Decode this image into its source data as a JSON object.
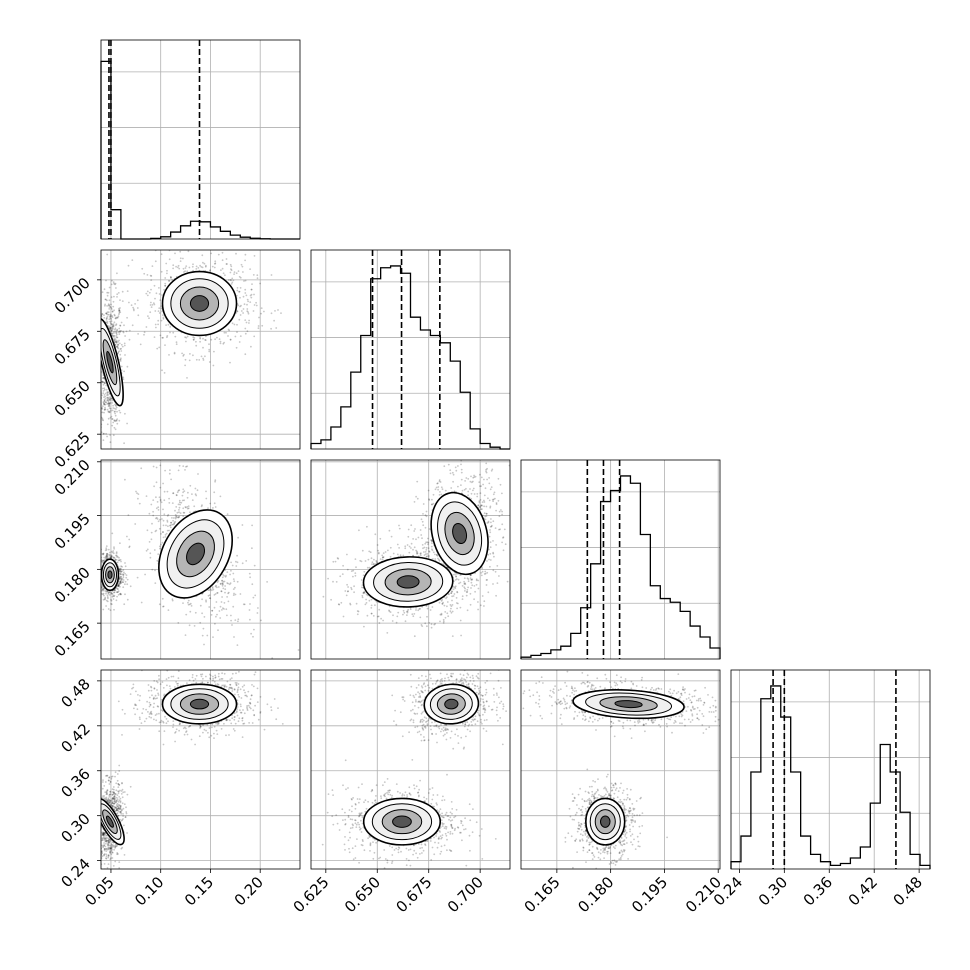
{
  "chart_data": {
    "type": "corner",
    "parameters": 4,
    "dimensions": [
      {
        "range": [
          0.04,
          0.24
        ],
        "ticks": [
          0.05,
          0.1,
          0.15,
          0.2
        ],
        "tick_labels": [
          "0.05",
          "0.10",
          "0.15",
          "0.20"
        ],
        "quantiles": [
          0.048,
          0.05,
          0.139
        ],
        "histogram": [
          0.97,
          0.16,
          0,
          0,
          0,
          0.003,
          0.012,
          0.038,
          0.072,
          0.097,
          0.094,
          0.066,
          0.042,
          0.021,
          0.01,
          0.004,
          0.001,
          0,
          0,
          0
        ]
      },
      {
        "range": [
          0.6178,
          0.7145
        ],
        "ticks": [
          0.625,
          0.65,
          0.675,
          0.7
        ],
        "tick_labels": [
          "0.625",
          "0.650",
          "0.675",
          "0.700"
        ],
        "quantiles": [
          0.6477,
          0.6618,
          0.6804
        ],
        "histogram": [
          0.03,
          0.05,
          0.12,
          0.23,
          0.42,
          0.62,
          0.93,
          0.99,
          1.0,
          0.96,
          0.72,
          0.65,
          0.62,
          0.58,
          0.48,
          0.31,
          0.11,
          0.03,
          0.01,
          0
        ]
      },
      {
        "range": [
          0.155,
          0.2105
        ],
        "ticks": [
          0.165,
          0.18,
          0.195,
          0.21
        ],
        "tick_labels": [
          "0.165",
          "0.180",
          "0.195",
          "0.210"
        ],
        "quantiles": [
          0.1735,
          0.178,
          0.1825
        ],
        "histogram": [
          0.01,
          0.02,
          0.03,
          0.05,
          0.07,
          0.14,
          0.28,
          0.52,
          0.86,
          0.92,
          1.0,
          0.96,
          0.68,
          0.4,
          0.33,
          0.31,
          0.26,
          0.18,
          0.12,
          0.06
        ]
      },
      {
        "range": [
          0.2288,
          0.4945
        ],
        "ticks": [
          0.24,
          0.3,
          0.36,
          0.42,
          0.48
        ],
        "tick_labels": [
          "0.24",
          "0.30",
          "0.36",
          "0.42",
          "0.48"
        ],
        "quantiles": [
          0.285,
          0.3,
          0.449
        ],
        "histogram": [
          0.04,
          0.18,
          0.53,
          0.93,
          1.0,
          0.83,
          0.53,
          0.18,
          0.08,
          0.04,
          0.02,
          0.03,
          0.06,
          0.12,
          0.36,
          0.68,
          0.53,
          0.31,
          0.08,
          0.02
        ]
      }
    ],
    "joint_modes": [
      {
        "pair": [
          1,
          0
        ],
        "modes": [
          {
            "cx": 0.049,
            "cy": 0.66,
            "sx": 0.0055,
            "sy": 0.014,
            "rho": 0.05,
            "w": 0.5
          },
          {
            "cx": 0.139,
            "cy": 0.6885,
            "sx": 0.024,
            "sy": 0.01,
            "rho": 0.0,
            "w": 0.5
          }
        ]
      },
      {
        "pair": [
          2,
          0
        ],
        "modes": [
          {
            "cx": 0.049,
            "cy": 0.1785,
            "sx": 0.0055,
            "sy": 0.0028,
            "rho": 0.0,
            "w": 0.5
          },
          {
            "cx": 0.135,
            "cy": 0.1843,
            "sx": 0.021,
            "sy": 0.0085,
            "rho": -0.45,
            "w": 0.5
          }
        ]
      },
      {
        "pair": [
          2,
          1
        ],
        "modes": [
          {
            "cx": 0.665,
            "cy": 0.1765,
            "sx": 0.014,
            "sy": 0.0045,
            "rho": 0.05,
            "w": 0.45
          },
          {
            "cx": 0.69,
            "cy": 0.19,
            "sx": 0.0085,
            "sy": 0.0075,
            "rho": 0.2,
            "w": 0.55
          }
        ]
      },
      {
        "pair": [
          3,
          0
        ],
        "modes": [
          {
            "cx": 0.049,
            "cy": 0.292,
            "sx": 0.0055,
            "sy": 0.022,
            "rho": 0.2,
            "w": 0.5
          },
          {
            "cx": 0.139,
            "cy": 0.449,
            "sx": 0.024,
            "sy": 0.017,
            "rho": 0.0,
            "w": 0.5
          }
        ]
      },
      {
        "pair": [
          3,
          1
        ],
        "modes": [
          {
            "cx": 0.662,
            "cy": 0.292,
            "sx": 0.012,
            "sy": 0.02,
            "rho": 0.0,
            "w": 0.5
          },
          {
            "cx": 0.686,
            "cy": 0.449,
            "sx": 0.0085,
            "sy": 0.017,
            "rho": 0.1,
            "w": 0.5
          }
        ]
      },
      {
        "pair": [
          3,
          2
        ],
        "modes": [
          {
            "cx": 0.1785,
            "cy": 0.292,
            "sx": 0.0035,
            "sy": 0.02,
            "rho": 0.0,
            "w": 0.5
          },
          {
            "cx": 0.185,
            "cy": 0.449,
            "sx": 0.01,
            "sy": 0.012,
            "rho": -0.25,
            "w": 0.5
          }
        ]
      }
    ],
    "grid": true
  }
}
